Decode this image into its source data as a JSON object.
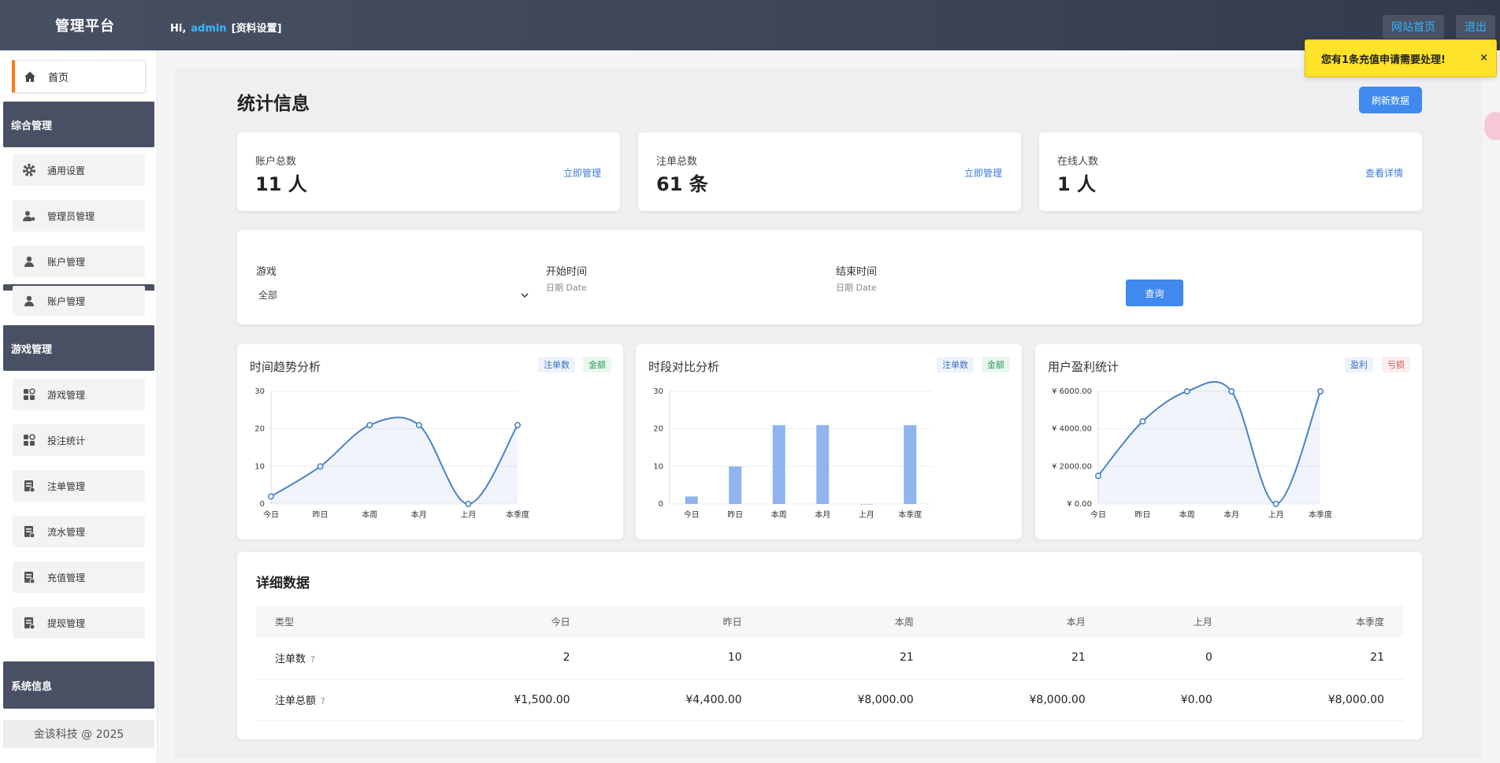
{
  "header": {
    "brand": "管理平台",
    "greeting": "Hi,",
    "username": "admin",
    "profile_link": "[资料设置]",
    "site_home_button": "网站首页",
    "logout_button": "退出"
  },
  "sidebar": {
    "home": "首页",
    "groups": {
      "general": "综合管理",
      "game": "游戏管理",
      "system": "系统信息"
    },
    "general_items": [
      "通用设置",
      "管理员管理",
      "账户管理",
      "账户管理"
    ],
    "game_items": [
      "游戏管理",
      "投注统计",
      "注单管理",
      "流水管理",
      "充值管理",
      "提现管理"
    ],
    "copyright": "金该科技 @ 2025"
  },
  "notification": {
    "text": "您有1条充值申请需要处理!",
    "close": "×"
  },
  "page": {
    "title": "统计信息",
    "refresh_button": "刷新数据"
  },
  "stats": [
    {
      "label": "账户总数",
      "value": "11 人",
      "link": "立即管理"
    },
    {
      "label": "注单总数",
      "value": "61 条",
      "link": "立即管理"
    },
    {
      "label": "在线人数",
      "value": "1 人",
      "link": "查看详情"
    }
  ],
  "filters": {
    "game_label": "游戏",
    "game_value": "全部",
    "start_label": "开始时间",
    "start_placeholder": "日期 Date",
    "end_label": "结束时间",
    "end_placeholder": "日期 Date",
    "query_button": "查询"
  },
  "chart_data": [
    {
      "type": "line",
      "title": "时间趋势分析",
      "tags": [
        "注单数",
        "金额"
      ],
      "categories": [
        "今日",
        "昨日",
        "本周",
        "本月",
        "上月",
        "本季度"
      ],
      "values": [
        2,
        10,
        21,
        21,
        0,
        21
      ],
      "yticks": [
        "0",
        "10",
        "20",
        "30"
      ],
      "ylim": [
        0,
        30
      ],
      "smooth": true,
      "color": "#4a82c8"
    },
    {
      "type": "bar",
      "title": "时段对比分析",
      "tags": [
        "注单数",
        "金额"
      ],
      "categories": [
        "今日",
        "昨日",
        "本周",
        "本月",
        "上月",
        "本季度"
      ],
      "values": [
        2,
        10,
        21,
        21,
        0,
        21
      ],
      "yticks": [
        "0",
        "10",
        "20",
        "30"
      ],
      "ylim": [
        0,
        30
      ],
      "color": "#8fb4ef"
    },
    {
      "type": "line",
      "title": "用户盈利统计",
      "tags": [
        "盈利",
        "亏损"
      ],
      "categories": [
        "今日",
        "昨日",
        "本周",
        "本月",
        "上月",
        "本季度"
      ],
      "values": [
        1500,
        4400,
        8000,
        8000,
        0,
        8000
      ],
      "yticks": [
        "¥ 0.00",
        "¥ 2000.00",
        "¥ 4000.00",
        "¥ 6000.00"
      ],
      "ylim": [
        0,
        6000
      ],
      "clip": true,
      "smooth": true,
      "color": "#4a82c8"
    }
  ],
  "detail": {
    "title": "详细数据",
    "columns": [
      "类型",
      "今日",
      "昨日",
      "本周",
      "本月",
      "上月",
      "本季度"
    ],
    "rows": [
      {
        "name": "注单数",
        "help": "?",
        "cells": [
          "2",
          "10",
          "21",
          "21",
          "0",
          "21"
        ]
      },
      {
        "name": "注单总额",
        "help": "?",
        "cells": [
          "¥1,500.00",
          "¥4,400.00",
          "¥8,000.00",
          "¥8,000.00",
          "¥0.00",
          "¥8,000.00"
        ]
      }
    ]
  }
}
